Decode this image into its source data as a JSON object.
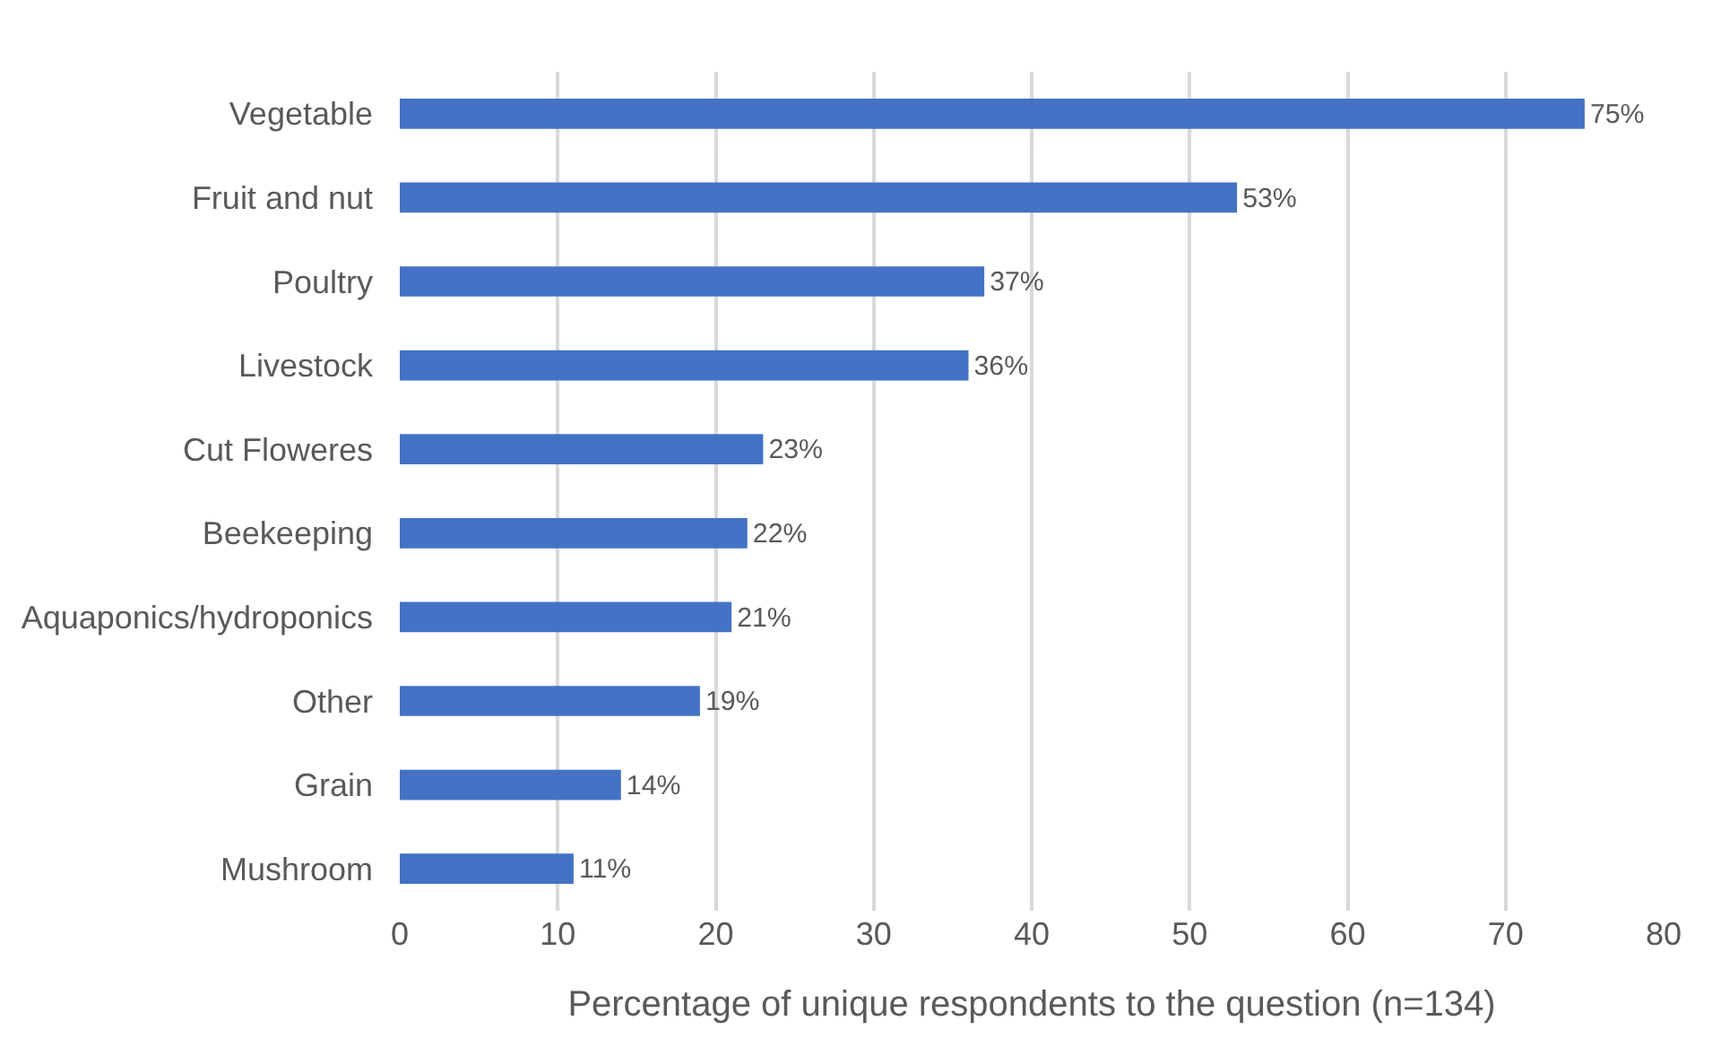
{
  "chart_data": {
    "type": "bar",
    "orientation": "horizontal",
    "xlabel": "Percentage of unique respondents to the question (n=134)",
    "categories": [
      "Vegetable",
      "Fruit and nut",
      "Poultry",
      "Livestock",
      "Cut Floweres",
      "Beekeeping",
      "Aquaponics/hydroponics",
      "Other",
      "Grain",
      "Mushroom"
    ],
    "values": [
      75,
      53,
      37,
      36,
      23,
      22,
      21,
      19,
      14,
      11
    ],
    "value_labels": [
      "75%",
      "53%",
      "37%",
      "36%",
      "23%",
      "22%",
      "21%",
      "19%",
      "14%",
      "11%"
    ],
    "color": "#4472c4",
    "xlim": [
      0,
      80
    ],
    "xticks": [
      0,
      10,
      20,
      30,
      40,
      50,
      60,
      70,
      80
    ],
    "grid": "x",
    "legend": false
  }
}
